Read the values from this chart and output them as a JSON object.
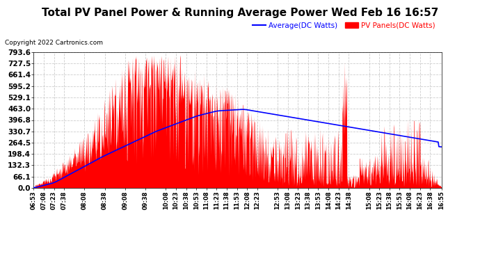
{
  "title": "Total PV Panel Power & Running Average Power Wed Feb 16 16:57",
  "copyright": "Copyright 2022 Cartronics.com",
  "legend_avg": "Average(DC Watts)",
  "legend_pv": "PV Panels(DC Watts)",
  "y_ticks": [
    0.0,
    66.1,
    132.3,
    198.4,
    264.5,
    330.7,
    396.8,
    463.0,
    529.1,
    595.2,
    661.4,
    727.5,
    793.6
  ],
  "y_max": 793.6,
  "y_min": 0.0,
  "bg_color": "#ffffff",
  "plot_bg_color": "#ffffff",
  "grid_color": "#cccccc",
  "fill_color": "#ff0000",
  "avg_line_color": "#0000ff",
  "title_fontsize": 11,
  "tick_fontsize": 7.5,
  "copyright_fontsize": 6.5,
  "legend_fontsize": 7.5,
  "x_labels": [
    "06:53",
    "07:08",
    "07:23",
    "07:38",
    "08:08",
    "08:38",
    "09:08",
    "09:38",
    "10:08",
    "10:23",
    "10:38",
    "10:53",
    "11:08",
    "11:23",
    "11:38",
    "11:53",
    "12:08",
    "12:23",
    "12:53",
    "13:08",
    "13:23",
    "13:38",
    "13:53",
    "14:08",
    "14:23",
    "14:38",
    "15:08",
    "15:23",
    "15:38",
    "15:53",
    "16:08",
    "16:23",
    "16:38",
    "16:55"
  ]
}
